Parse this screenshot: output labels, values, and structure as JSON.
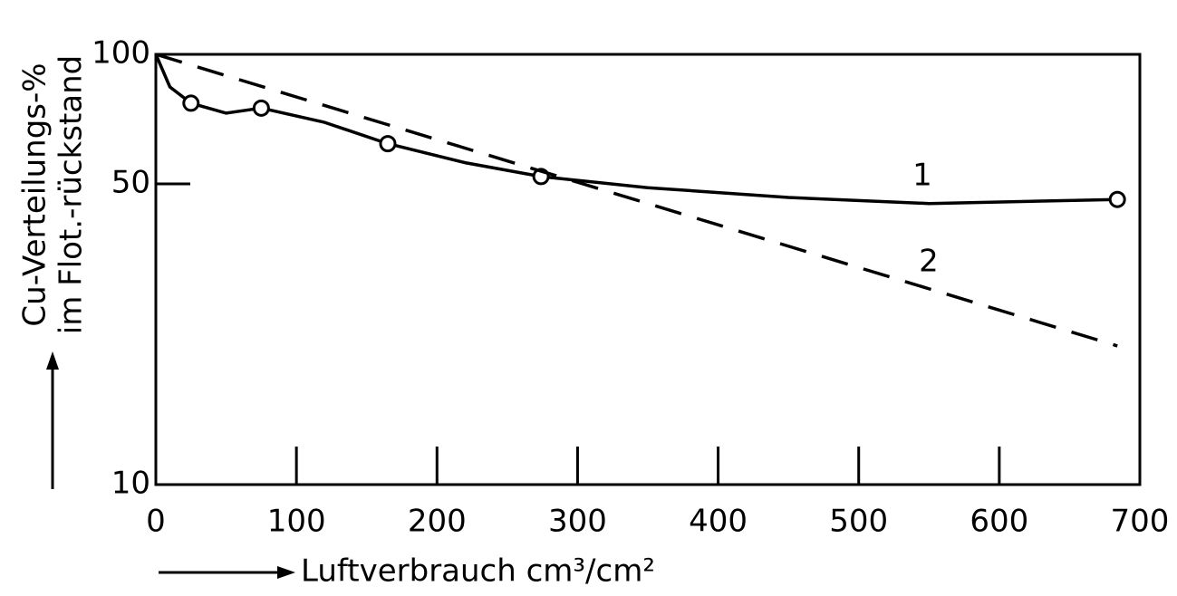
{
  "chart_data": {
    "type": "line",
    "ylabel": [
      "Cu-Verteilungs-%",
      "im Flot.-rückstand"
    ],
    "xlabel": "Luftverbrauch cm³/cm²",
    "xlim": [
      0,
      700
    ],
    "xticks": [
      0,
      100,
      200,
      300,
      400,
      500,
      600,
      700
    ],
    "ylim": [
      10,
      100
    ],
    "yticks": [
      10,
      50,
      100
    ],
    "log_y": true,
    "series": [
      {
        "name": "1",
        "color": "#000000",
        "dash": false,
        "x": [
          0,
          10,
          25,
          50,
          75,
          120,
          165,
          220,
          274,
          350,
          450,
          550,
          684
        ],
        "values": [
          100,
          84,
          77,
          73,
          75,
          69.5,
          62,
          56,
          52,
          49,
          46.5,
          45,
          46
        ],
        "points_x": [
          25,
          75,
          165,
          274,
          684
        ],
        "points_values": [
          77,
          75,
          62,
          52,
          46
        ]
      },
      {
        "name": "2",
        "color": "#000000",
        "dash": true,
        "x": [
          0,
          684
        ],
        "values": [
          100,
          21
        ]
      }
    ]
  }
}
